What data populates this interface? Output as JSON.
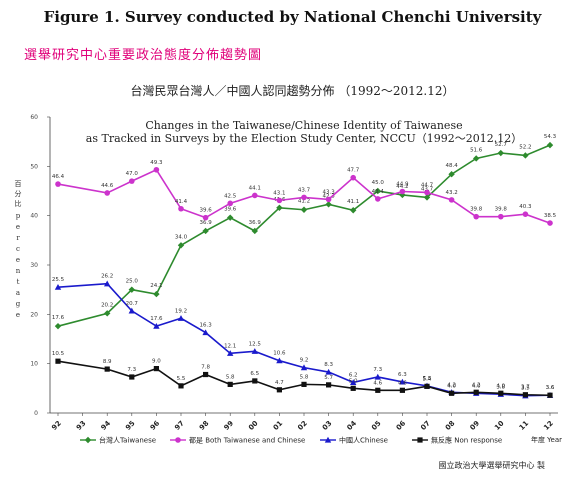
{
  "figure_title": "Figure 1. Survey conducted by National Chenchi University",
  "cn_header": "選舉研究中心重要政治態度分佈趨勢圖",
  "cn_chart_title": "台灣民眾台灣人／中國人認同趨勢分佈 （1992～2012.12）",
  "credit": "國立政治大學選舉研究中心 製",
  "chart_data": {
    "type": "line",
    "title_lines": [
      "Changes in the Taiwanese/Chinese Identity of Taiwanese",
      "as Tracked in Surveys by the Election Study Center, NCCU（1992～2012.12）"
    ],
    "ylabel_cn": "百分比",
    "ylabel_en": "Percentage",
    "xlabel": "年度 Year",
    "ylim": [
      0,
      60
    ],
    "yticks": [
      0,
      10,
      20,
      30,
      40,
      50,
      60
    ],
    "grid": false,
    "legend_position": "bottom",
    "x_ticks": [
      {
        "x": 0,
        "label": "92"
      },
      {
        "x": 1,
        "label": "93"
      },
      {
        "x": 2,
        "label": "94"
      },
      {
        "x": 3,
        "label": "95"
      },
      {
        "x": 4,
        "label": "96"
      },
      {
        "x": 5,
        "label": "97"
      },
      {
        "x": 6,
        "label": "98"
      },
      {
        "x": 7,
        "label": "99"
      },
      {
        "x": 8,
        "label": "00"
      },
      {
        "x": 9,
        "label": "01"
      },
      {
        "x": 10,
        "label": "02"
      },
      {
        "x": 11,
        "label": "03"
      },
      {
        "x": 12,
        "label": "04"
      },
      {
        "x": 13,
        "label": "05"
      },
      {
        "x": 14,
        "label": "06"
      },
      {
        "x": 15,
        "label": "07"
      },
      {
        "x": 16,
        "label": "08"
      },
      {
        "x": 17,
        "label": "09"
      },
      {
        "x": 18,
        "label": "10"
      },
      {
        "x": 19,
        "label": "11"
      },
      {
        "x": 20,
        "label": "12"
      }
    ],
    "x": [
      0,
      2,
      3,
      4,
      5,
      6,
      7,
      8,
      9,
      10,
      11,
      12,
      13,
      14,
      15,
      16,
      17,
      18,
      19,
      20
    ],
    "series": [
      {
        "name": "台灣人Taiwanese",
        "color": "#2e8b2e",
        "marker": "diamond",
        "values": [
          17.6,
          20.2,
          25.0,
          24.1,
          34.0,
          36.9,
          39.6,
          36.9,
          41.6,
          41.2,
          42.3,
          41.1,
          45.0,
          44.2,
          43.7,
          48.4,
          51.6,
          52.7,
          52.2,
          54.3
        ]
      },
      {
        "name": "都是 Both Taiwanese and Chinese",
        "color": "#cc33cc",
        "marker": "circle",
        "values": [
          46.4,
          44.6,
          47.0,
          49.3,
          41.4,
          39.6,
          42.5,
          44.1,
          43.1,
          43.7,
          43.3,
          47.7,
          43.4,
          44.9,
          44.7,
          43.2,
          39.8,
          39.8,
          40.3,
          38.5
        ]
      },
      {
        "name": "中國人Chinese",
        "color": "#1a1acc",
        "marker": "triangle",
        "values": [
          25.5,
          26.2,
          20.7,
          17.6,
          19.2,
          16.3,
          12.1,
          12.5,
          10.6,
          9.2,
          8.3,
          6.2,
          7.3,
          6.3,
          5.5,
          4.2,
          4.0,
          3.8,
          3.5,
          3.6
        ]
      },
      {
        "name": "無反應 Non response",
        "color": "#111111",
        "marker": "square",
        "values": [
          10.5,
          8.9,
          7.3,
          9.0,
          5.5,
          7.8,
          5.8,
          6.5,
          4.7,
          5.8,
          5.7,
          5.0,
          4.6,
          4.6,
          5.4,
          4.0,
          4.2,
          4.0,
          3.7,
          3.6
        ]
      }
    ]
  }
}
